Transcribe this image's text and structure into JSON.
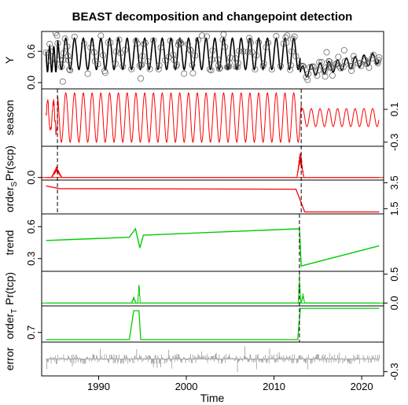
{
  "chart_data": {
    "type": "line",
    "title": "BEAST decomposition and changepoint detection",
    "xlabel": "Time",
    "xlim": [
      1983.5,
      2022.5
    ],
    "x_ticks": [
      "1990",
      "2000",
      "2010",
      "2020"
    ],
    "changepoints": {
      "season": [
        1985.3,
        2013.1
      ],
      "trend": [
        2012.9
      ]
    },
    "panels": [
      {
        "id": "Y",
        "ylabel": "Y",
        "ylim": [
          -0.12,
          0.98
        ],
        "ticks": [
          {
            "v": 0.0,
            "label": "0.0",
            "side": "left"
          },
          {
            "v": 0.6,
            "label": "0.6",
            "side": "left"
          }
        ],
        "color": "#000000",
        "points_circles": true,
        "series": {
          "segments": [
            {
              "from": 1984.0,
              "to": 2013.0,
              "base": 0.55,
              "amp": 0.3,
              "amp_growth": 0.0
            },
            {
              "from": 2013.0,
              "to": 2022.0,
              "base": 0.22,
              "amp": 0.11,
              "trend_end": 0.47
            }
          ]
        }
      },
      {
        "id": "season",
        "ylabel": "season",
        "ylim": [
          -0.35,
          0.35
        ],
        "ticks": [
          {
            "v": 0.1,
            "label": "0.1",
            "side": "right"
          },
          {
            "v": -0.3,
            "label": "-0.3",
            "side": "right"
          }
        ],
        "color": "#ff0000",
        "series": {
          "segments": [
            {
              "from": 1984.0,
              "to": 2013.1,
              "amp": 0.3
            },
            {
              "from": 2013.1,
              "to": 2022.0,
              "amp": 0.11
            }
          ]
        }
      },
      {
        "id": "Pr(scp)",
        "ylabel": "Pr(scp)",
        "ylim": [
          -0.05,
          0.6
        ],
        "ticks": [
          {
            "v": 0.0,
            "label": "0.0",
            "side": "left"
          }
        ],
        "color": "#ff0000",
        "series": {
          "spikes": [
            {
              "x": 1985.2,
              "p": 0.22,
              "w": 1.2
            },
            {
              "x": 2013.0,
              "p": 0.55,
              "w": 0.8
            }
          ]
        }
      },
      {
        "id": "order_S",
        "ylabel": "order",
        "ylabel_sub": "S",
        "ylim": [
          1.1,
          3.7
        ],
        "ticks": [
          {
            "v": 3.5,
            "label": "3.5",
            "side": "right"
          },
          {
            "v": 1.5,
            "label": "1.5",
            "side": "right"
          }
        ],
        "color": "#ff0000",
        "series": {
          "steps": [
            [
              1984.0,
              3.25
            ],
            [
              1985.5,
              3.05
            ],
            [
              2012.5,
              3.0
            ],
            [
              2013.5,
              1.25
            ],
            [
              2022.0,
              1.25
            ]
          ]
        }
      },
      {
        "id": "trend",
        "ylabel": "trend",
        "ylim": [
          0.18,
          0.72
        ],
        "ticks": [
          {
            "v": 0.6,
            "label": "0.6",
            "side": "left"
          },
          {
            "v": 0.3,
            "label": "0.3",
            "side": "left"
          }
        ],
        "color": "#00cc00",
        "series": {
          "points": [
            [
              1984.0,
              0.47
            ],
            [
              1993.5,
              0.5
            ],
            [
              1994.2,
              0.58
            ],
            [
              1994.7,
              0.4
            ],
            [
              1995.1,
              0.52
            ],
            [
              2012.9,
              0.58
            ],
            [
              2013.1,
              0.23
            ],
            [
              2022.0,
              0.42
            ]
          ]
        }
      },
      {
        "id": "Pr(tcp)",
        "ylabel": "Pr(tcp)",
        "ylim": [
          -0.05,
          0.55
        ],
        "ticks": [
          {
            "v": 0.5,
            "label": "0.5",
            "side": "right"
          },
          {
            "v": 0.0,
            "label": "0.0",
            "side": "right"
          }
        ],
        "color": "#00cc00",
        "series": {
          "spikes": [
            {
              "x": 1994.0,
              "p": 0.12,
              "w": 0.5
            },
            {
              "x": 1994.6,
              "p": 0.4,
              "w": 0.3
            },
            {
              "x": 2012.9,
              "p": 0.53,
              "w": 0.3
            },
            {
              "x": 2013.3,
              "p": 0.18,
              "w": 0.4
            }
          ]
        }
      },
      {
        "id": "order_T",
        "ylabel": "order",
        "ylabel_sub": "T",
        "ylim": [
          0.62,
          0.92
        ],
        "ticks": [
          {
            "v": 0.7,
            "label": "0.7",
            "side": "left"
          }
        ],
        "color": "#00cc00",
        "series": {
          "steps": [
            [
              1984.0,
              0.64
            ],
            [
              1993.5,
              0.64
            ],
            [
              1994.0,
              0.88
            ],
            [
              1994.6,
              0.88
            ],
            [
              1994.8,
              0.64
            ],
            [
              2012.7,
              0.64
            ],
            [
              2013.0,
              0.9
            ],
            [
              2022.0,
              0.9
            ]
          ]
        }
      },
      {
        "id": "error",
        "ylabel": "error",
        "ylim": [
          -0.4,
          0.4
        ],
        "ticks": [
          {
            "v": -0.3,
            "label": "-0.3",
            "side": "right"
          }
        ],
        "color": "#999999",
        "series": {
          "noise_amp": 0.12
        }
      }
    ]
  }
}
